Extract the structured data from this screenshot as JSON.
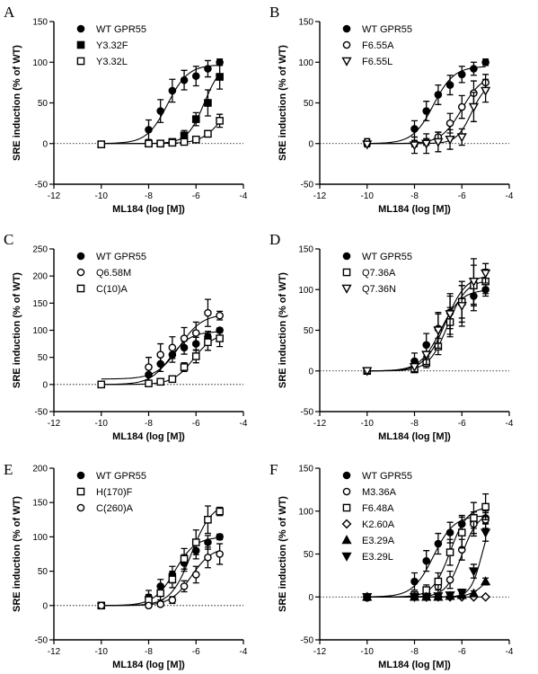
{
  "chart_data": [
    {
      "type": "scatter",
      "panel_label": "A",
      "xlabel": "ML184 (log [M])",
      "ylabel": "SRE induction (% of WT)",
      "xlim": [
        -12,
        -4
      ],
      "ylim": [
        -50,
        150
      ],
      "xticks": [
        -12,
        -10,
        -8,
        -6,
        -4
      ],
      "yticks": [
        -50,
        0,
        50,
        100,
        150
      ],
      "x": [
        -10,
        -8,
        -7.5,
        -7,
        -6.5,
        -6,
        -5.5,
        -5
      ],
      "legend_position": "top-left",
      "series": [
        {
          "name": "WT GPR55",
          "marker": "circle-filled",
          "values": [
            -1,
            17,
            40,
            65,
            78,
            83,
            92,
            100
          ],
          "errors": [
            3,
            12,
            14,
            14,
            12,
            12,
            10,
            4
          ],
          "fit": {
            "bottom": 0,
            "top": 97,
            "logec50": -7.2,
            "hill": 1
          }
        },
        {
          "name": "Y3.32F",
          "marker": "square-filled",
          "values": [
            -1,
            0,
            0,
            2,
            10,
            30,
            50,
            82
          ],
          "errors": [
            2,
            2,
            2,
            3,
            6,
            8,
            16,
            15
          ],
          "fit": {
            "bottom": 0,
            "top": 100,
            "logec50": -5.65,
            "hill": 1.2
          }
        },
        {
          "name": "Y3.32L",
          "marker": "square-open",
          "values": [
            -1,
            0,
            0,
            1,
            2,
            5,
            12,
            28
          ],
          "errors": [
            2,
            2,
            2,
            2,
            3,
            3,
            4,
            8
          ],
          "fit": {
            "bottom": 0,
            "top": 60,
            "logec50": -4.9,
            "hill": 1
          }
        }
      ]
    },
    {
      "type": "scatter",
      "panel_label": "B",
      "xlabel": "ML184 (log [M])",
      "ylabel": "SRE induction (% of WT)",
      "xlim": [
        -12,
        -4
      ],
      "ylim": [
        -50,
        150
      ],
      "xticks": [
        -12,
        -10,
        -8,
        -6,
        -4
      ],
      "yticks": [
        -50,
        0,
        50,
        100,
        150
      ],
      "x": [
        -10,
        -8,
        -7.5,
        -7,
        -6.5,
        -6,
        -5.5,
        -5
      ],
      "legend_position": "top-left",
      "series": [
        {
          "name": "WT GPR55",
          "marker": "circle-filled",
          "values": [
            0,
            18,
            40,
            60,
            72,
            85,
            92,
            100
          ],
          "errors": [
            3,
            10,
            12,
            12,
            12,
            10,
            8,
            4
          ],
          "fit": {
            "bottom": 0,
            "top": 95,
            "logec50": -7.2,
            "hill": 1
          }
        },
        {
          "name": "F6.55A",
          "marker": "circle-open",
          "values": [
            2,
            0,
            2,
            8,
            25,
            45,
            62,
            75
          ],
          "errors": [
            4,
            4,
            4,
            6,
            12,
            14,
            15,
            10
          ],
          "fit": {
            "bottom": 0,
            "top": 85,
            "logec50": -6.0,
            "hill": 1
          }
        },
        {
          "name": "F6.55L",
          "marker": "triangle-down-open",
          "values": [
            -1,
            -2,
            0,
            2,
            5,
            8,
            45,
            65
          ],
          "errors": [
            3,
            10,
            12,
            12,
            12,
            10,
            18,
            14
          ],
          "fit": {
            "bottom": 0,
            "top": 75,
            "logec50": -5.6,
            "hill": 1.4
          }
        }
      ]
    },
    {
      "type": "scatter",
      "panel_label": "C",
      "xlabel": "ML184 (log [M])",
      "ylabel": "SRE induction (% of WT)",
      "xlim": [
        -12,
        -4
      ],
      "ylim": [
        -50,
        250
      ],
      "xticks": [
        -12,
        -10,
        -8,
        -6,
        -4
      ],
      "yticks": [
        -50,
        0,
        50,
        100,
        150,
        200,
        250
      ],
      "x": [
        -10,
        -8,
        -7.5,
        -7,
        -6.5,
        -6,
        -5.5,
        -5
      ],
      "legend_position": "top-left",
      "series": [
        {
          "name": "WT GPR55",
          "marker": "circle-filled",
          "values": [
            0,
            18,
            38,
            55,
            68,
            75,
            88,
            100
          ],
          "errors": [
            3,
            12,
            14,
            14,
            12,
            12,
            10,
            4
          ],
          "fit": {
            "bottom": 0,
            "top": 98,
            "logec50": -7.1,
            "hill": 1
          }
        },
        {
          "name": "Q6.58M",
          "marker": "circle-open",
          "values": [
            0,
            32,
            55,
            68,
            85,
            95,
            132,
            127
          ],
          "errors": [
            3,
            18,
            20,
            20,
            20,
            20,
            25,
            8
          ],
          "fit": {
            "bottom": 10,
            "top": 130,
            "logec50": -6.7,
            "hill": 0.9
          }
        },
        {
          "name": "C(10)A",
          "marker": "square-open",
          "values": [
            0,
            2,
            5,
            10,
            32,
            52,
            78,
            85
          ],
          "errors": [
            3,
            3,
            3,
            5,
            8,
            12,
            15,
            15
          ],
          "fit": {
            "bottom": 0,
            "top": 95,
            "logec50": -6.1,
            "hill": 1
          }
        }
      ]
    },
    {
      "type": "scatter",
      "panel_label": "D",
      "xlabel": "ML184 (log [M])",
      "ylabel": "SRE induction (% of WT)",
      "xlim": [
        -12,
        -4
      ],
      "ylim": [
        -50,
        150
      ],
      "xticks": [
        -12,
        -10,
        -8,
        -6,
        -4
      ],
      "yticks": [
        -50,
        0,
        50,
        100,
        150
      ],
      "x": [
        -10,
        -8,
        -7.5,
        -7,
        -6.5,
        -6,
        -5.5,
        -5
      ],
      "legend_position": "top-left",
      "series": [
        {
          "name": "WT GPR55",
          "marker": "circle-filled",
          "values": [
            0,
            12,
            32,
            52,
            72,
            85,
            92,
            100
          ],
          "errors": [
            3,
            10,
            14,
            18,
            20,
            20,
            18,
            8
          ],
          "fit": {
            "bottom": 0,
            "top": 100,
            "logec50": -6.9,
            "hill": 1
          }
        },
        {
          "name": "Q7.36A",
          "marker": "square-open",
          "values": [
            0,
            2,
            10,
            30,
            60,
            85,
            105,
            110
          ],
          "errors": [
            3,
            4,
            6,
            10,
            18,
            25,
            25,
            15
          ],
          "fit": {
            "bottom": 0,
            "top": 112,
            "logec50": -6.6,
            "hill": 1.1
          }
        },
        {
          "name": "Q7.36N",
          "marker": "triangle-down-open",
          "values": [
            0,
            5,
            20,
            50,
            70,
            80,
            110,
            120
          ],
          "errors": [
            3,
            6,
            12,
            22,
            25,
            25,
            28,
            12
          ],
          "fit": {
            "bottom": 0,
            "top": 118,
            "logec50": -6.7,
            "hill": 1
          }
        }
      ]
    },
    {
      "type": "scatter",
      "panel_label": "E",
      "xlabel": "ML184 (log [M])",
      "ylabel": "SRE induction (% of WT)",
      "xlim": [
        -12,
        -4
      ],
      "ylim": [
        -50,
        200
      ],
      "xticks": [
        -12,
        -10,
        -8,
        -6,
        -4
      ],
      "yticks": [
        -50,
        0,
        50,
        100,
        150,
        200
      ],
      "x": [
        -10,
        -8,
        -7.5,
        -7,
        -6.5,
        -6,
        -5.5,
        -5
      ],
      "legend_position": "top-left",
      "series": [
        {
          "name": "WT GPR55",
          "marker": "circle-filled",
          "values": [
            0,
            12,
            28,
            45,
            62,
            80,
            92,
            100
          ],
          "errors": [
            3,
            10,
            10,
            12,
            12,
            12,
            10,
            4
          ],
          "fit": {
            "bottom": 0,
            "top": 100,
            "logec50": -6.9,
            "hill": 1
          }
        },
        {
          "name": "H(170)F",
          "marker": "square-open",
          "values": [
            0,
            8,
            18,
            38,
            68,
            92,
            125,
            137
          ],
          "errors": [
            3,
            8,
            10,
            12,
            15,
            18,
            20,
            6
          ],
          "fit": {
            "bottom": 0,
            "top": 150,
            "logec50": -6.2,
            "hill": 1
          }
        },
        {
          "name": "C(260)A",
          "marker": "circle-open",
          "values": [
            0,
            0,
            2,
            8,
            28,
            45,
            70,
            75
          ],
          "errors": [
            3,
            3,
            3,
            5,
            8,
            12,
            15,
            15
          ],
          "fit": {
            "bottom": 0,
            "top": 85,
            "logec50": -6.2,
            "hill": 1
          }
        }
      ]
    },
    {
      "type": "scatter",
      "panel_label": "F",
      "xlabel": "ML184 (log [M])",
      "ylabel": "SRE induction (% of WT)",
      "xlim": [
        -12,
        -4
      ],
      "ylim": [
        -50,
        150
      ],
      "xticks": [
        -12,
        -10,
        -8,
        -6,
        -4
      ],
      "yticks": [
        -50,
        0,
        50,
        100,
        150
      ],
      "x": [
        -10,
        -8,
        -7.5,
        -7,
        -6.5,
        -6,
        -5.5,
        -5
      ],
      "legend_position": "top-left",
      "series": [
        {
          "name": "WT GPR55",
          "marker": "circle-filled",
          "values": [
            -1,
            18,
            42,
            62,
            75,
            85,
            88,
            92
          ],
          "errors": [
            3,
            10,
            12,
            12,
            12,
            10,
            8,
            6
          ],
          "fit": {
            "bottom": 0,
            "top": 95,
            "logec50": -7.2,
            "hill": 1
          }
        },
        {
          "name": "M3.36A",
          "marker": "circle-open",
          "values": [
            0,
            2,
            5,
            12,
            20,
            55,
            85,
            90
          ],
          "errors": [
            3,
            4,
            5,
            8,
            10,
            12,
            14,
            10
          ],
          "fit": {
            "bottom": 0,
            "top": 98,
            "logec50": -6.0,
            "hill": 1.3
          }
        },
        {
          "name": "F6.48A",
          "marker": "square-open",
          "values": [
            0,
            2,
            8,
            18,
            52,
            75,
            92,
            105
          ],
          "errors": [
            3,
            4,
            6,
            10,
            15,
            18,
            18,
            15
          ],
          "fit": {
            "bottom": 0,
            "top": 105,
            "logec50": -6.5,
            "hill": 1.2
          }
        },
        {
          "name": "K2.60A",
          "marker": "diamond-open",
          "values": [
            0,
            0,
            0,
            0,
            0,
            0,
            0,
            0
          ],
          "errors": [
            1,
            1,
            1,
            1,
            1,
            1,
            1,
            1
          ],
          "fit": {
            "bottom": 0,
            "top": 0,
            "logec50": -6,
            "hill": 1
          }
        },
        {
          "name": "E3.29A",
          "marker": "triangle-up-filled",
          "values": [
            0,
            0,
            0,
            0,
            1,
            2,
            4,
            18
          ],
          "errors": [
            1,
            1,
            1,
            1,
            2,
            2,
            3,
            4
          ],
          "fit": {
            "bottom": 0,
            "top": 40,
            "logec50": -4.9,
            "hill": 1.3
          }
        },
        {
          "name": "E3.29L",
          "marker": "triangle-down-filled",
          "values": [
            0,
            0,
            0,
            1,
            2,
            5,
            30,
            75
          ],
          "errors": [
            1,
            1,
            1,
            2,
            3,
            4,
            8,
            10
          ],
          "fit": {
            "bottom": 0,
            "top": 100,
            "logec50": -5.15,
            "hill": 1.8
          }
        }
      ]
    }
  ]
}
